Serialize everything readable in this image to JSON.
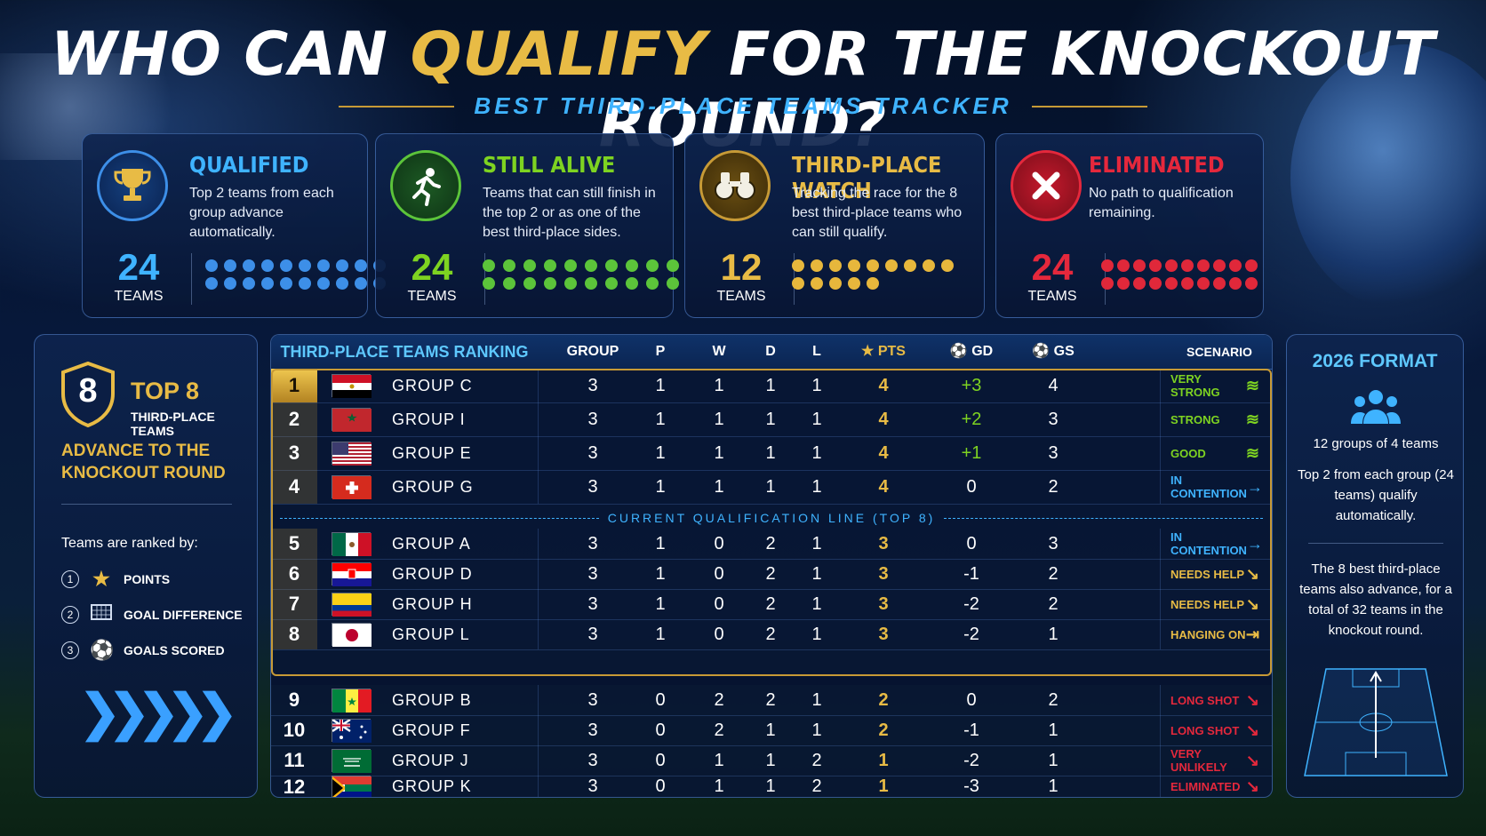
{
  "header": {
    "title_pre": "WHO CAN",
    "title_highlight": "QUALIFY",
    "title_post": "FOR THE KNOCKOUT ROUND?",
    "subtitle": "BEST THIRD-PLACE TEAMS TRACKER"
  },
  "colors": {
    "gold": "#e8bb45",
    "blue": "#3fb3ff",
    "green": "#7ed321",
    "red": "#e5283c",
    "dot_blue": "#3d8fe8",
    "dot_green": "#5cc43a",
    "dot_gold": "#e7b73c",
    "dot_red": "#e0283a"
  },
  "summary_cards": [
    {
      "title": "QUALIFIED",
      "desc": "Top 2 teams from each group advance automatically.",
      "count": "24",
      "unit": "TEAMS",
      "icon": "trophy-icon",
      "dots": 20
    },
    {
      "title": "STILL ALIVE",
      "desc": "Teams that can still finish in the top 2 or as one of the best third-place sides.",
      "count": "24",
      "unit": "TEAMS",
      "icon": "runner-icon",
      "dots": 20
    },
    {
      "title": "THIRD-PLACE WATCH",
      "desc": "Tracking the race for the 8 best third-place teams who can still qualify.",
      "count": "12",
      "unit": "TEAMS",
      "icon": "binoculars-icon",
      "dots": 14
    },
    {
      "title": "ELIMINATED",
      "desc": "No path to qualification remaining.",
      "count": "24",
      "unit": "TEAMS",
      "icon": "x-icon",
      "dots": 20
    }
  ],
  "left_panel": {
    "badge_number": "8",
    "top8": "TOP 8",
    "third_place": "THIRD-PLACE TEAMS",
    "advance": "ADVANCE TO THE KNOCKOUT ROUND",
    "ranked_by": "Teams are ranked by:",
    "criteria": [
      {
        "num": "1",
        "label": "POINTS",
        "icon": "star-icon"
      },
      {
        "num": "2",
        "label": "GOAL DIFFERENCE",
        "icon": "goal-net-icon"
      },
      {
        "num": "3",
        "label": "GOALS SCORED",
        "icon": "soccer-ball-icon"
      }
    ]
  },
  "right_panel": {
    "title": "2026 FORMAT",
    "line1": "12 groups of 4 teams",
    "line2": "Top 2 from each group (24 teams) qualify automatically.",
    "line3": "The 8 best third-place teams also advance, for a total of 32 teams in the knockout round."
  },
  "table": {
    "headers": {
      "title": "THIRD-PLACE TEAMS RANKING",
      "group": "GROUP",
      "p": "P",
      "w": "W",
      "d": "D",
      "l": "L",
      "pts": "PTS",
      "gd": "GD",
      "gs": "GS",
      "scenario": "SCENARIO"
    },
    "qualification_line": "CURRENT QUALIFICATION LINE (TOP 8)",
    "rows": [
      {
        "rank": "1",
        "flag": "egypt",
        "group": "GROUP C",
        "gp": "3",
        "w": "1",
        "d": "1",
        "l": "1",
        "lost": "1",
        "pts": "4",
        "gd": "+3",
        "gs": "4",
        "scenario": "VERY STRONG",
        "scen_color": "#7ed321",
        "arrow": "≋"
      },
      {
        "rank": "2",
        "flag": "morocco",
        "group": "GROUP I",
        "gp": "3",
        "w": "1",
        "d": "1",
        "l": "1",
        "lost": "1",
        "pts": "4",
        "gd": "+2",
        "gs": "3",
        "scenario": "STRONG",
        "scen_color": "#7ed321",
        "arrow": "≋"
      },
      {
        "rank": "3",
        "flag": "usa",
        "group": "GROUP E",
        "gp": "3",
        "w": "1",
        "d": "1",
        "l": "1",
        "lost": "1",
        "pts": "4",
        "gd": "+1",
        "gs": "3",
        "scenario": "GOOD",
        "scen_color": "#7ed321",
        "arrow": "≋"
      },
      {
        "rank": "4",
        "flag": "switzerland",
        "group": "GROUP G",
        "gp": "3",
        "w": "1",
        "d": "1",
        "l": "1",
        "lost": "1",
        "pts": "4",
        "gd": "0",
        "gs": "2",
        "scenario": "IN CONTENTION",
        "scen_color": "#3fb3ff",
        "arrow": "→"
      },
      {
        "rank": "5",
        "flag": "mexico",
        "group": "GROUP A",
        "gp": "3",
        "w": "1",
        "d": "0",
        "l": "2",
        "lost": "1",
        "pts": "3",
        "gd": "0",
        "gs": "3",
        "scenario": "IN CONTENTION",
        "scen_color": "#3fb3ff",
        "arrow": "→"
      },
      {
        "rank": "6",
        "flag": "croatia",
        "group": "GROUP D",
        "gp": "3",
        "w": "1",
        "d": "0",
        "l": "2",
        "lost": "1",
        "pts": "3",
        "gd": "-1",
        "gs": "2",
        "scenario": "NEEDS HELP",
        "scen_color": "#e8bb45",
        "arrow": "↘"
      },
      {
        "rank": "7",
        "flag": "colombia",
        "group": "GROUP H",
        "gp": "3",
        "w": "1",
        "d": "0",
        "l": "2",
        "lost": "1",
        "pts": "3",
        "gd": "-2",
        "gs": "2",
        "scenario": "NEEDS HELP",
        "scen_color": "#e8bb45",
        "arrow": "↘"
      },
      {
        "rank": "8",
        "flag": "japan",
        "group": "GROUP L",
        "gp": "3",
        "w": "1",
        "d": "0",
        "l": "2",
        "lost": "1",
        "pts": "3",
        "gd": "-2",
        "gs": "1",
        "scenario": "HANGING ON",
        "scen_color": "#e8bb45",
        "arrow": "⇥"
      },
      {
        "rank": "9",
        "flag": "senegal",
        "group": "GROUP B",
        "gp": "3",
        "w": "0",
        "d": "2",
        "l": "2",
        "lost": "1",
        "pts": "2",
        "gd": "0",
        "gs": "2",
        "scenario": "LONG SHOT",
        "scen_color": "#e5283c",
        "arrow": "↘"
      },
      {
        "rank": "10",
        "flag": "australia",
        "group": "GROUP F",
        "gp": "3",
        "w": "0",
        "d": "2",
        "l": "1",
        "lost": "1",
        "pts": "2",
        "gd": "-1",
        "gs": "1",
        "scenario": "LONG SHOT",
        "scen_color": "#e5283c",
        "arrow": "↘"
      },
      {
        "rank": "11",
        "flag": "saudi",
        "group": "GROUP J",
        "gp": "3",
        "w": "0",
        "d": "1",
        "l": "1",
        "lost": "2",
        "pts": "1",
        "gd": "-2",
        "gs": "1",
        "scenario": "VERY UNLIKELY",
        "scen_color": "#e5283c",
        "arrow": "↘"
      },
      {
        "rank": "12",
        "flag": "southafrica",
        "group": "GROUP K",
        "gp": "3",
        "w": "0",
        "d": "1",
        "l": "1",
        "lost": "2",
        "pts": "1",
        "gd": "-3",
        "gs": "1",
        "scenario": "ELIMINATED",
        "scen_color": "#e5283c",
        "arrow": "↘"
      }
    ]
  }
}
